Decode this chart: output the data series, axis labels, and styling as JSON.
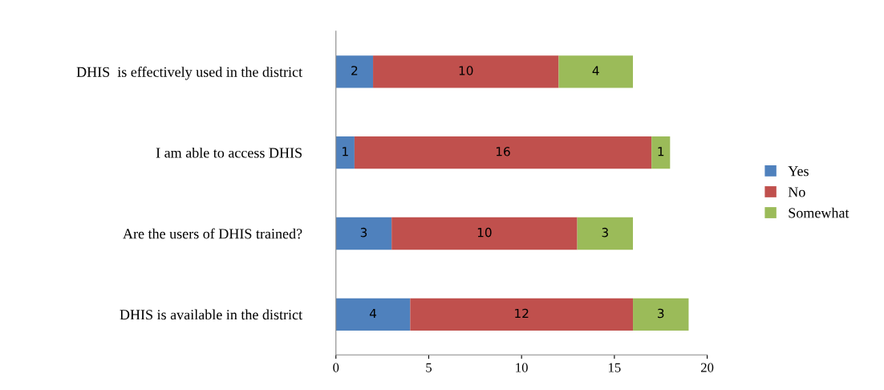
{
  "chart_data": {
    "type": "bar",
    "orientation": "horizontal",
    "stacked": true,
    "categories": [
      "DHIS  is effectively used in the district",
      "I am able to access DHIS",
      "Are the users of DHIS trained?",
      "DHIS is available in the district"
    ],
    "series": [
      {
        "name": "Yes",
        "color": "#4f81bd",
        "values": [
          2,
          1,
          3,
          4
        ]
      },
      {
        "name": "No",
        "color": "#c0504d",
        "values": [
          10,
          16,
          10,
          12
        ]
      },
      {
        "name": "Somewhat",
        "color": "#9bbb59",
        "values": [
          4,
          1,
          3,
          3
        ]
      }
    ],
    "xlim": [
      0,
      20
    ],
    "xticks": [
      0,
      5,
      10,
      15,
      20
    ],
    "data_labels": true,
    "legend": "right",
    "grid": false
  }
}
